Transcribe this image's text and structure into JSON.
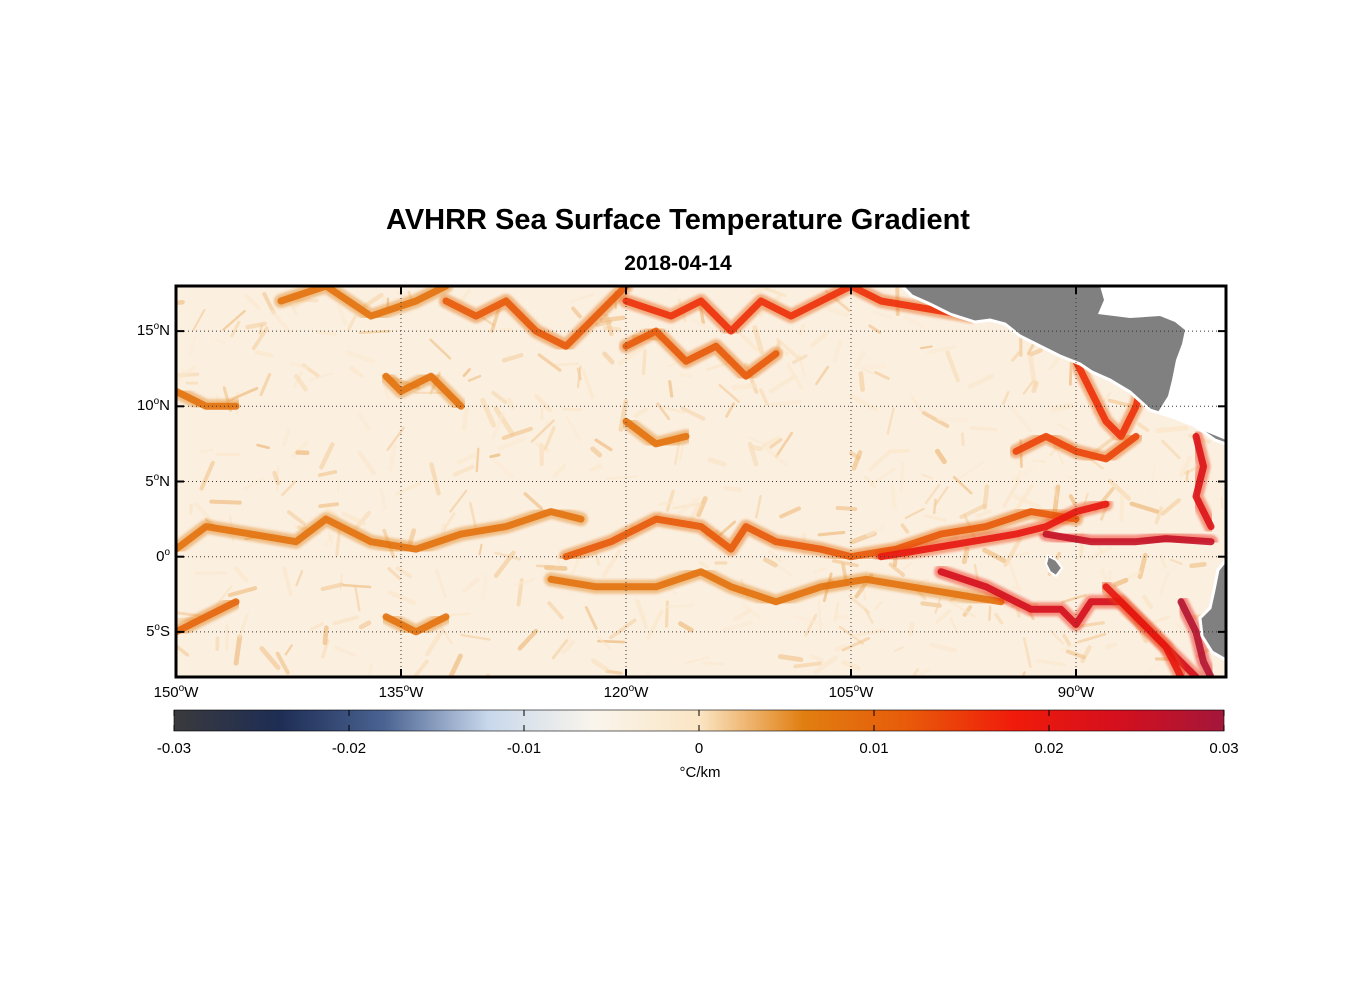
{
  "title": "AVHRR Sea Surface Temperature Gradient",
  "subtitle": "2018-04-14",
  "map": {
    "lon_range": [
      -150,
      -80
    ],
    "lat_range": [
      -8,
      18
    ],
    "grid": "dotted",
    "land_color": "#808080",
    "ocean_background": "#fbefe0",
    "lat_ticks": [
      {
        "lat": 15,
        "deg": "15",
        "sup": "o",
        "hemi": "N"
      },
      {
        "lat": 10,
        "deg": "10",
        "sup": "o",
        "hemi": "N"
      },
      {
        "lat": 5,
        "deg": "5",
        "sup": "o",
        "hemi": "N"
      },
      {
        "lat": 0,
        "deg": "0",
        "sup": "o",
        "hemi": ""
      },
      {
        "lat": -5,
        "deg": "5",
        "sup": "o",
        "hemi": "S"
      }
    ],
    "lon_ticks": [
      {
        "lon": -150,
        "deg": "150",
        "sup": "o",
        "hemi": "W"
      },
      {
        "lon": -135,
        "deg": "135",
        "sup": "o",
        "hemi": "W"
      },
      {
        "lon": -120,
        "deg": "120",
        "sup": "o",
        "hemi": "W"
      },
      {
        "lon": -105,
        "deg": "105",
        "sup": "o",
        "hemi": "W"
      },
      {
        "lon": -90,
        "deg": "90",
        "sup": "o",
        "hemi": "W"
      }
    ],
    "fronts": [
      {
        "level": 0.008,
        "points": [
          [
            -150,
            0.5
          ],
          [
            -148,
            2
          ],
          [
            -145,
            1.5
          ],
          [
            -142,
            1
          ],
          [
            -140,
            2.5
          ],
          [
            -137,
            1
          ],
          [
            -134,
            0.5
          ],
          [
            -131,
            1.5
          ],
          [
            -128,
            2
          ],
          [
            -125,
            3
          ],
          [
            -123,
            2.5
          ]
        ]
      },
      {
        "level": 0.012,
        "points": [
          [
            -124,
            0
          ],
          [
            -121,
            1
          ],
          [
            -118,
            2.5
          ],
          [
            -115,
            2
          ],
          [
            -113,
            0.5
          ],
          [
            -112,
            2
          ],
          [
            -110,
            1
          ],
          [
            -107,
            0.5
          ],
          [
            -105,
            0
          ],
          [
            -102,
            0.5
          ],
          [
            -99,
            1.5
          ],
          [
            -96,
            2
          ],
          [
            -93,
            3
          ],
          [
            -90,
            2.5
          ]
        ]
      },
      {
        "level": 0.02,
        "points": [
          [
            -103,
            0
          ],
          [
            -100,
            0.5
          ],
          [
            -97,
            1
          ],
          [
            -94,
            1.5
          ],
          [
            -92,
            2
          ],
          [
            -90,
            3
          ],
          [
            -88,
            3.5
          ]
        ]
      },
      {
        "level": 0.026,
        "points": [
          [
            -92,
            1.5
          ],
          [
            -89,
            1
          ],
          [
            -86,
            1
          ],
          [
            -84,
            1.2
          ],
          [
            -81,
            1
          ]
        ]
      },
      {
        "level": 0.008,
        "points": [
          [
            -125,
            -1.5
          ],
          [
            -122,
            -2
          ],
          [
            -118,
            -2
          ],
          [
            -115,
            -1
          ],
          [
            -113,
            -2
          ],
          [
            -110,
            -3
          ],
          [
            -107,
            -2
          ],
          [
            -104,
            -1.5
          ],
          [
            -101,
            -2
          ],
          [
            -98,
            -2.5
          ],
          [
            -95,
            -3
          ]
        ]
      },
      {
        "level": 0.024,
        "points": [
          [
            -99,
            -1
          ],
          [
            -96,
            -2
          ],
          [
            -93,
            -3.5
          ],
          [
            -91,
            -3.5
          ],
          [
            -90,
            -4.5
          ],
          [
            -89,
            -3
          ],
          [
            -87,
            -3
          ],
          [
            -85,
            -5
          ],
          [
            -83,
            -7
          ],
          [
            -82,
            -8
          ]
        ]
      },
      {
        "level": 0.02,
        "points": [
          [
            -88,
            -2
          ],
          [
            -86,
            -4
          ],
          [
            -84,
            -6
          ],
          [
            -83,
            -8
          ]
        ]
      },
      {
        "level": 0.028,
        "points": [
          [
            -83,
            -3
          ],
          [
            -82,
            -5
          ],
          [
            -81.5,
            -7
          ],
          [
            -81,
            -8
          ]
        ]
      },
      {
        "level": 0.022,
        "points": [
          [
            -82,
            8
          ],
          [
            -81.5,
            6
          ],
          [
            -82,
            4
          ],
          [
            -81,
            2
          ]
        ]
      },
      {
        "level": 0.008,
        "points": [
          [
            -143,
            17
          ],
          [
            -140,
            18
          ],
          [
            -137,
            16
          ],
          [
            -134,
            17
          ],
          [
            -132,
            18
          ]
        ]
      },
      {
        "level": 0.012,
        "points": [
          [
            -132,
            17
          ],
          [
            -130,
            16
          ],
          [
            -128,
            17
          ],
          [
            -126,
            15
          ],
          [
            -124,
            14
          ],
          [
            -122,
            16
          ],
          [
            -120,
            18
          ]
        ]
      },
      {
        "level": 0.016,
        "points": [
          [
            -120,
            17
          ],
          [
            -117,
            16
          ],
          [
            -115,
            17
          ],
          [
            -113,
            15
          ],
          [
            -111,
            17
          ],
          [
            -109,
            16
          ],
          [
            -107,
            17
          ],
          [
            -105,
            18
          ],
          [
            -103,
            17
          ],
          [
            -100,
            16.5
          ],
          [
            -97,
            16
          ]
        ]
      },
      {
        "level": 0.012,
        "points": [
          [
            -120,
            14
          ],
          [
            -118,
            15
          ],
          [
            -116,
            13
          ],
          [
            -114,
            14
          ],
          [
            -112,
            12
          ],
          [
            -110,
            13.5
          ]
        ]
      },
      {
        "level": 0.016,
        "points": [
          [
            -90,
            13
          ],
          [
            -89,
            11
          ],
          [
            -88,
            9
          ],
          [
            -87,
            8
          ],
          [
            -86,
            10
          ],
          [
            -85.5,
            12
          ]
        ]
      },
      {
        "level": 0.014,
        "points": [
          [
            -94,
            7
          ],
          [
            -92,
            8
          ],
          [
            -90,
            7
          ],
          [
            -88,
            6.5
          ],
          [
            -86,
            8
          ]
        ]
      },
      {
        "level": 0.008,
        "points": [
          [
            -150,
            11
          ],
          [
            -148,
            10
          ],
          [
            -146,
            10
          ]
        ]
      },
      {
        "level": 0.008,
        "points": [
          [
            -136,
            12
          ],
          [
            -135,
            11
          ],
          [
            -133,
            12
          ],
          [
            -131,
            10
          ]
        ]
      },
      {
        "level": 0.008,
        "points": [
          [
            -120,
            9
          ],
          [
            -118,
            7.5
          ],
          [
            -116,
            8
          ]
        ]
      },
      {
        "level": 0.01,
        "points": [
          [
            -150,
            -5
          ],
          [
            -148,
            -4
          ],
          [
            -146,
            -3
          ]
        ]
      },
      {
        "level": 0.008,
        "points": [
          [
            -136,
            -4
          ],
          [
            -134,
            -5
          ],
          [
            -132,
            -4
          ]
        ]
      }
    ]
  },
  "colorbar": {
    "unit": "°C/km",
    "range": [
      -0.03,
      0.03
    ],
    "tick_values": [
      -0.03,
      -0.02,
      -0.01,
      0,
      0.01,
      0.02,
      0.03
    ],
    "tick_labels": [
      "-0.03",
      "-0.02",
      "-0.01",
      "0",
      "0.01",
      "0.02",
      "0.03"
    ],
    "colors": [
      "#3a3a3d",
      "#1e2d54",
      "#4a6392",
      "#c9d8ec",
      "#faf5ec",
      "#fbe5c4",
      "#e07e10",
      "#e85a0a",
      "#f01b0a",
      "#d40f1e",
      "#a3173a"
    ]
  }
}
